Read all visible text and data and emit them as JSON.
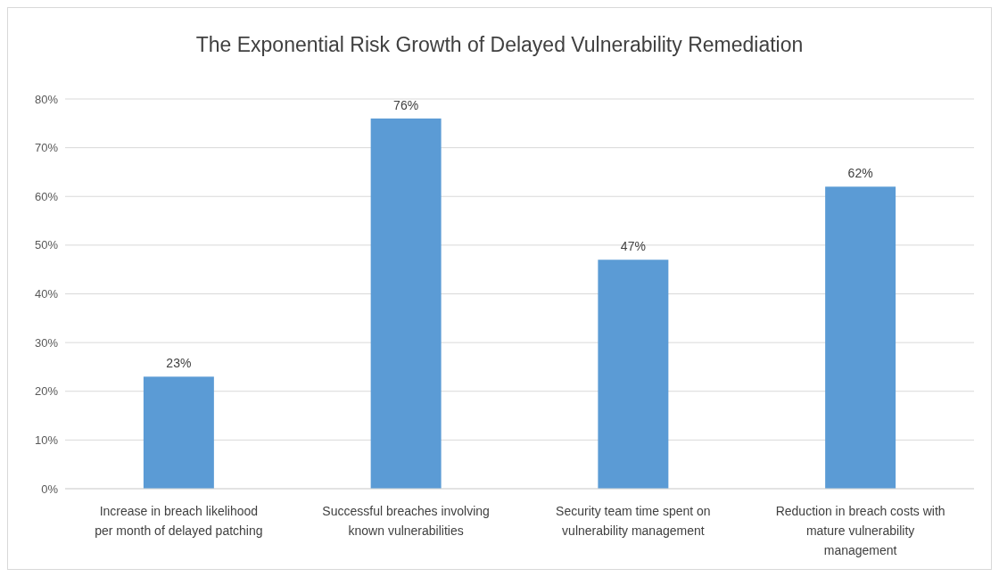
{
  "chart_data": {
    "type": "bar",
    "title": "The Exponential Risk Growth of Delayed Vulnerability Remediation",
    "categories": [
      "Increase in breach likelihood per month of delayed patching",
      "Successful breaches involving known vulnerabilities",
      "Security team time spent on vulnerability management",
      "Reduction in breach costs with mature vulnerability management"
    ],
    "values": [
      23,
      76,
      47,
      62
    ],
    "value_labels": [
      "23%",
      "76%",
      "47%",
      "62%"
    ],
    "color": "#5b9bd5",
    "ylim": [
      0,
      80
    ],
    "yticks": [
      {
        "value": 0,
        "label": "0%"
      },
      {
        "value": 10,
        "label": "10%"
      },
      {
        "value": 20,
        "label": "20%"
      },
      {
        "value": 30,
        "label": "30%"
      },
      {
        "value": 40,
        "label": "40%"
      },
      {
        "value": 50,
        "label": "50%"
      },
      {
        "value": 60,
        "label": "60%"
      },
      {
        "value": 70,
        "label": "70%"
      },
      {
        "value": 80,
        "label": "80%"
      }
    ],
    "grid": "y"
  }
}
